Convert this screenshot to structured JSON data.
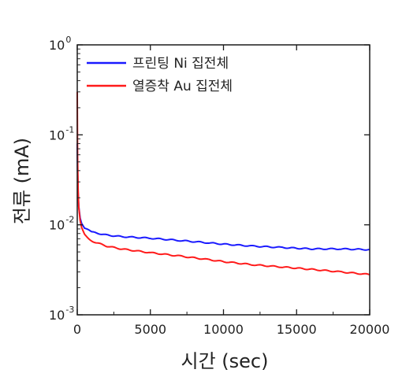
{
  "chart_data": {
    "type": "line",
    "xlabel": "시간 (sec)",
    "ylabel": "전류 (mA)",
    "x_scale": "linear",
    "y_scale": "log",
    "xlim": [
      0,
      20000
    ],
    "ylim": [
      0.001,
      1
    ],
    "x_ticks": [
      {
        "value": 0,
        "label": "0"
      },
      {
        "value": 5000,
        "label": "5000"
      },
      {
        "value": 10000,
        "label": "10000"
      },
      {
        "value": 15000,
        "label": "15000"
      },
      {
        "value": 20000,
        "label": "20000"
      }
    ],
    "y_ticks": [
      {
        "value": 0.001,
        "base": "10",
        "exp": "-3"
      },
      {
        "value": 0.01,
        "base": "10",
        "exp": "-2"
      },
      {
        "value": 0.1,
        "base": "10",
        "exp": "-1"
      },
      {
        "value": 1,
        "base": "10",
        "exp": "0"
      }
    ],
    "grid": false,
    "legend_position": "top-left",
    "series": [
      {
        "name": "프린팅 Ni 집전체",
        "color": "#1a1aff",
        "x": [
          0,
          20,
          60,
          100,
          200,
          300,
          500,
          1000,
          2000,
          3000,
          5000,
          7000,
          9000,
          10000,
          12000,
          14000,
          15000,
          16000,
          18000,
          20000
        ],
        "y": [
          0.08,
          0.04,
          0.022,
          0.016,
          0.012,
          0.0105,
          0.0092,
          0.0083,
          0.0077,
          0.0074,
          0.0071,
          0.0067,
          0.0063,
          0.0061,
          0.0058,
          0.0056,
          0.0055,
          0.0054,
          0.0054,
          0.0053
        ]
      },
      {
        "name": "열증착 Au 집전체",
        "color": "#ff1a1a",
        "x": [
          0,
          20,
          60,
          100,
          200,
          300,
          500,
          1000,
          2000,
          3000,
          5000,
          7000,
          9000,
          10000,
          12000,
          14000,
          15000,
          16000,
          18000,
          20000
        ],
        "y": [
          0.3,
          0.06,
          0.025,
          0.016,
          0.011,
          0.0092,
          0.0078,
          0.0066,
          0.0058,
          0.0054,
          0.0049,
          0.0045,
          0.0041,
          0.0039,
          0.0036,
          0.0034,
          0.0033,
          0.0032,
          0.003,
          0.0028
        ]
      }
    ]
  }
}
